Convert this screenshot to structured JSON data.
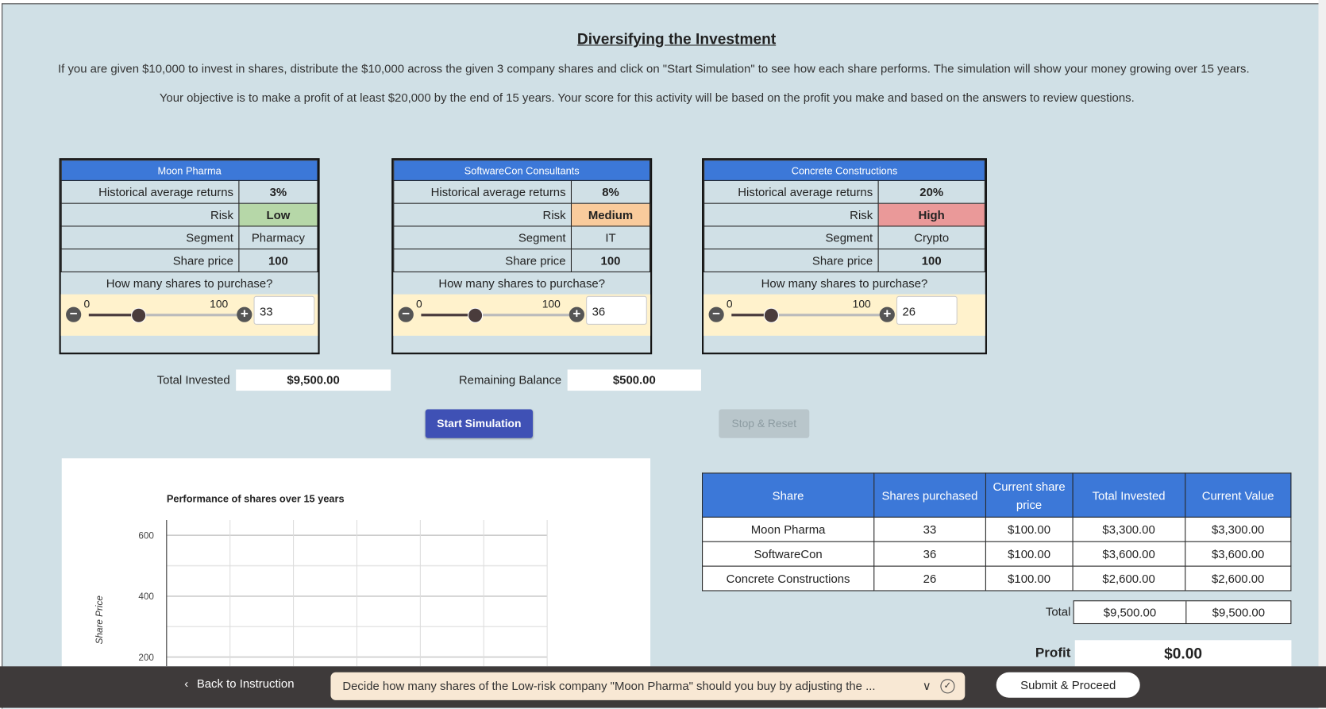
{
  "header": {
    "title": "Diversifying the Investment",
    "line1": "If you are given $10,000 to invest in shares, distribute the $10,000 across the given 3 company shares and click on \"Start Simulation\" to see how each share performs. The simulation will show your money growing over 15 years.",
    "line2": "Your objective is to make a profit of at least $20,000 by the end of 15 years. Your score for this activity will be based on the profit you make and based on the answers to review questions."
  },
  "labels": {
    "returns": "Historical average returns",
    "risk": "Risk",
    "segment": "Segment",
    "price": "Share price",
    "question": "How many shares to purchase?",
    "min": "0",
    "max": "100",
    "minus": "−",
    "plus": "+"
  },
  "companies": [
    {
      "name": "Moon Pharma",
      "returns": "3%",
      "risk": "Low",
      "risk_color": "#b6d7a8",
      "segment": "Pharmacy",
      "price": "100",
      "shares": "33",
      "slider_percent": 33
    },
    {
      "name": "SoftwareCon Consultants",
      "returns": "8%",
      "risk": "Medium",
      "risk_color": "#f9cb9c",
      "segment": "IT",
      "price": "100",
      "shares": "36",
      "slider_percent": 36
    },
    {
      "name": "Concrete Constructions",
      "returns": "20%",
      "risk": "High",
      "risk_color": "#ea9999",
      "segment": "Crypto",
      "price": "100",
      "shares": "26",
      "slider_percent": 26
    }
  ],
  "totals": {
    "invested_label": "Total Invested",
    "invested": "$9,500.00",
    "remaining_label": "Remaining Balance",
    "remaining": "$500.00"
  },
  "buttons": {
    "start": "Start Simulation",
    "stop": "Stop & Reset"
  },
  "chart_data": {
    "type": "line",
    "title": "Performance of shares over 15 years",
    "ylabel": "Share Price",
    "yticks": [
      "600",
      "400",
      "200"
    ],
    "grid": true,
    "series": []
  },
  "summary": {
    "headers": [
      "Share",
      "Shares purchased",
      "Current share price",
      "Total Invested",
      "Current Value"
    ],
    "rows": [
      [
        "Moon Pharma",
        "33",
        "$100.00",
        "$3,300.00",
        "$3,300.00"
      ],
      [
        "SoftwareCon",
        "36",
        "$100.00",
        "$3,600.00",
        "$3,600.00"
      ],
      [
        "Concrete Constructions",
        "26",
        "$100.00",
        "$2,600.00",
        "$2,600.00"
      ]
    ],
    "total_label": "Total",
    "total_invested": "$9,500.00",
    "total_value": "$9,500.00",
    "profit_label": "Profit",
    "profit": "$0.00"
  },
  "footer": {
    "back": "Back to Instruction",
    "instruction": "Decide how many shares of the Low-risk company \"Moon Pharma\" should you buy by adjusting the ...",
    "submit": "Submit & Proceed"
  }
}
